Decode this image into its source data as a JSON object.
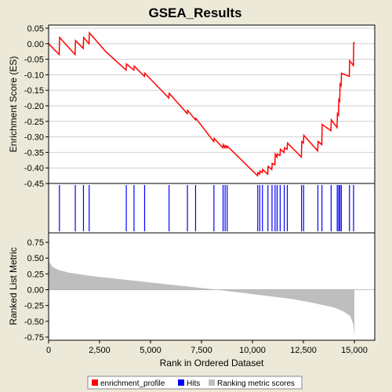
{
  "chart_data": {
    "type": "line",
    "title": "GSEA_Results",
    "xlabel": "Rank in Ordered Dataset",
    "xlim": [
      0,
      16000
    ],
    "xticks": [
      0,
      2500,
      5000,
      7500,
      10000,
      12500,
      15000
    ],
    "xtick_labels": [
      "0",
      "2,500",
      "5,000",
      "7,500",
      "10,000",
      "12,500",
      "15,000"
    ],
    "panels": {
      "enrichment": {
        "ylabel": "Enrichment Score (ES)",
        "ylim": [
          -0.45,
          0.06
        ],
        "yticks": [
          0.05,
          0.0,
          -0.05,
          -0.1,
          -0.15,
          -0.2,
          -0.25,
          -0.3,
          -0.35,
          -0.4,
          -0.45
        ],
        "ytick_labels": [
          "0.05",
          "0.00",
          "-0.05",
          "-0.10",
          "-0.15",
          "-0.20",
          "-0.25",
          "-0.30",
          "-0.35",
          "-0.40",
          "-0.45"
        ],
        "line_color": "#ff0000"
      },
      "hits": {
        "color": "#0000ff"
      },
      "ranked_metric": {
        "ylabel": "Ranked List Metric",
        "ylim": [
          -0.8,
          0.9
        ],
        "yticks": [
          0.75,
          0.5,
          0.25,
          0.0,
          -0.25,
          -0.5,
          -0.75
        ],
        "ytick_labels": [
          "0.75",
          "0.50",
          "0.25",
          "0.00",
          "-0.25",
          "-0.50",
          "-0.75"
        ],
        "fill_color": "#bebebe"
      }
    },
    "series": [
      {
        "name": "enrichment_profile",
        "color": "#ff0000",
        "x": [
          0,
          520,
          540,
          1300,
          1320,
          1700,
          1720,
          1980,
          2000,
          2800,
          3800,
          3820,
          4180,
          4200,
          4700,
          4720,
          5900,
          5920,
          6800,
          6820,
          7200,
          7220,
          8100,
          8120,
          8550,
          8570,
          8650,
          8670,
          8750,
          8770,
          10250,
          10270,
          10350,
          10370,
          10480,
          10500,
          10750,
          10770,
          10950,
          10970,
          11100,
          11120,
          11200,
          11220,
          11350,
          11370,
          11550,
          11570,
          11700,
          11720,
          12400,
          12420,
          12500,
          12520,
          13200,
          13220,
          13400,
          13420,
          13850,
          13870,
          14150,
          14170,
          14220,
          14240,
          14280,
          14300,
          14350,
          14370,
          14750,
          14770,
          14950,
          14970,
          15000
        ],
        "y": [
          0.0,
          -0.035,
          0.02,
          -0.035,
          0.01,
          -0.015,
          0.02,
          0.0,
          0.035,
          -0.025,
          -0.085,
          -0.065,
          -0.085,
          -0.072,
          -0.105,
          -0.095,
          -0.175,
          -0.16,
          -0.225,
          -0.215,
          -0.245,
          -0.24,
          -0.315,
          -0.305,
          -0.335,
          -0.325,
          -0.335,
          -0.328,
          -0.335,
          -0.33,
          -0.425,
          -0.415,
          -0.42,
          -0.41,
          -0.415,
          -0.405,
          -0.42,
          -0.395,
          -0.405,
          -0.385,
          -0.39,
          -0.355,
          -0.365,
          -0.355,
          -0.36,
          -0.34,
          -0.35,
          -0.335,
          -0.34,
          -0.32,
          -0.365,
          -0.315,
          -0.32,
          -0.295,
          -0.345,
          -0.315,
          -0.325,
          -0.26,
          -0.28,
          -0.245,
          -0.27,
          -0.225,
          -0.23,
          -0.18,
          -0.185,
          -0.13,
          -0.135,
          -0.095,
          -0.105,
          -0.055,
          -0.07,
          0.005,
          0.0
        ]
      },
      {
        "name": "Hits",
        "color": "#0000ff",
        "x": [
          530,
          1310,
          1710,
          1990,
          3810,
          4190,
          4710,
          5910,
          6810,
          7210,
          8110,
          8560,
          8660,
          8760,
          10260,
          10360,
          10490,
          10760,
          10960,
          11110,
          11210,
          11360,
          11560,
          11710,
          12410,
          12510,
          13210,
          13410,
          13860,
          14160,
          14230,
          14290,
          14360,
          14760,
          14960
        ]
      },
      {
        "name": "Ranking metric scores",
        "color": "#bebebe",
        "x": [
          0,
          60,
          200,
          500,
          1000,
          2000,
          4000,
          6000,
          8000,
          10000,
          12000,
          13000,
          14000,
          14500,
          14800,
          14950,
          15000
        ],
        "y": [
          0.5,
          0.42,
          0.36,
          0.31,
          0.27,
          0.22,
          0.15,
          0.08,
          0.01,
          -0.07,
          -0.15,
          -0.21,
          -0.28,
          -0.35,
          -0.42,
          -0.55,
          -0.75
        ]
      }
    ],
    "legend": {
      "placement": "bottom",
      "items": [
        {
          "label": "enrichment_profile",
          "color": "#ff0000"
        },
        {
          "label": "Hits",
          "color": "#0000ff"
        },
        {
          "label": "Ranking metric scores",
          "color": "#bebebe"
        }
      ]
    }
  }
}
